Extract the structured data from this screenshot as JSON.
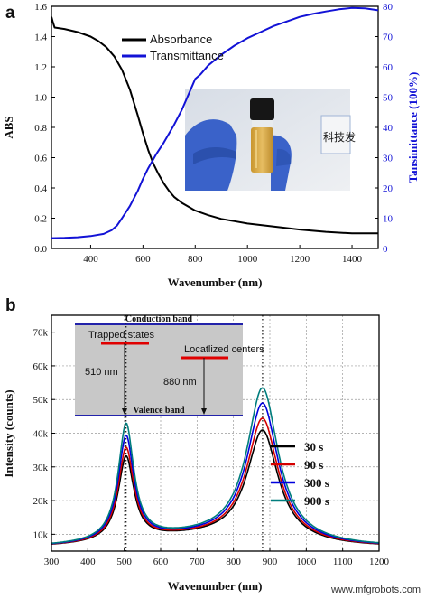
{
  "chart_data": [
    {
      "panel": "a",
      "type": "line",
      "xlabel": "Wavenumber (nm)",
      "ylabel": "ABS",
      "ylabel_right": "Tansimittance (100%)",
      "xlim": [
        250,
        1500
      ],
      "ylim": [
        0.0,
        1.6
      ],
      "ylim_right": [
        0,
        80
      ],
      "xticks": [
        400,
        600,
        800,
        1000,
        1200,
        1400
      ],
      "yticks": [
        0.0,
        0.2,
        0.4,
        0.6,
        0.8,
        1.0,
        1.2,
        1.4,
        1.6
      ],
      "yticks_right": [
        0,
        10,
        20,
        30,
        40,
        50,
        60,
        70,
        80
      ],
      "legend_position": "top-center",
      "series": [
        {
          "name": "Absorbance",
          "axis": "left",
          "color": "#000000",
          "x": [
            250,
            255,
            262,
            300,
            350,
            400,
            430,
            460,
            490,
            520,
            550,
            580,
            600,
            620,
            640,
            660,
            680,
            700,
            720,
            750,
            780,
            800,
            850,
            900,
            950,
            1000,
            1100,
            1200,
            1300,
            1400,
            1500
          ],
          "y": [
            1.53,
            1.5,
            1.46,
            1.45,
            1.43,
            1.4,
            1.37,
            1.33,
            1.27,
            1.18,
            1.05,
            0.88,
            0.76,
            0.65,
            0.56,
            0.49,
            0.43,
            0.38,
            0.34,
            0.3,
            0.27,
            0.25,
            0.22,
            0.195,
            0.18,
            0.165,
            0.145,
            0.125,
            0.11,
            0.1,
            0.1
          ]
        },
        {
          "name": "Transmittance",
          "axis": "right",
          "color": "#1212d6",
          "x": [
            250,
            300,
            350,
            400,
            450,
            480,
            500,
            520,
            550,
            580,
            600,
            620,
            650,
            680,
            700,
            720,
            750,
            780,
            800,
            820,
            850,
            900,
            950,
            1000,
            1050,
            1100,
            1150,
            1200,
            1250,
            1300,
            1350,
            1400,
            1450,
            1500
          ],
          "y": [
            3.4,
            3.5,
            3.7,
            4.1,
            4.8,
            6.0,
            7.5,
            10.0,
            14.0,
            19.0,
            23.0,
            26.5,
            31.0,
            35.0,
            38.0,
            41.0,
            46.0,
            52.0,
            56.0,
            57.5,
            60.5,
            64.0,
            67.0,
            69.5,
            71.5,
            73.5,
            75.0,
            76.5,
            77.5,
            78.3,
            79.0,
            79.5,
            79.3,
            78.7
          ]
        }
      ],
      "inset_label": "科技发"
    },
    {
      "panel": "b",
      "type": "line",
      "xlabel": "Wavenumber (nm)",
      "ylabel": "Intensity (counts)",
      "xlim": [
        300,
        1200
      ],
      "ylim": [
        5000,
        75000
      ],
      "xticks": [
        300,
        400,
        500,
        600,
        700,
        800,
        900,
        1000,
        1100,
        1200
      ],
      "yticks": [
        10000,
        20000,
        30000,
        40000,
        50000,
        60000,
        70000
      ],
      "ytick_labels": [
        "10k",
        "20k",
        "30k",
        "40k",
        "50k",
        "60k",
        "70k"
      ],
      "grid": true,
      "legend_position": "right",
      "reference_lines_x": [
        505,
        880
      ],
      "series": [
        {
          "name": "30 s",
          "color": "#000000",
          "peak1": 34500,
          "peak2": 42500
        },
        {
          "name": "90 s",
          "color": "#d40000",
          "peak1": 37000,
          "peak2": 46000
        },
        {
          "name": "300 s",
          "color": "#0000dd",
          "peak1": 40500,
          "peak2": 50500
        },
        {
          "name": "900 s",
          "color": "#007d7d",
          "peak1": 44000,
          "peak2": 55000
        }
      ],
      "inset": {
        "conduction_band": "Conduction band",
        "valence_band": "Valence band",
        "trapped_states": "Trapped states",
        "localized_centers": "Locatlized centers",
        "arrow1_label": "510 nm",
        "arrow2_label": "880 nm"
      }
    }
  ],
  "panel_labels": [
    "a",
    "b"
  ],
  "watermark": "www.mfgrobots.com"
}
